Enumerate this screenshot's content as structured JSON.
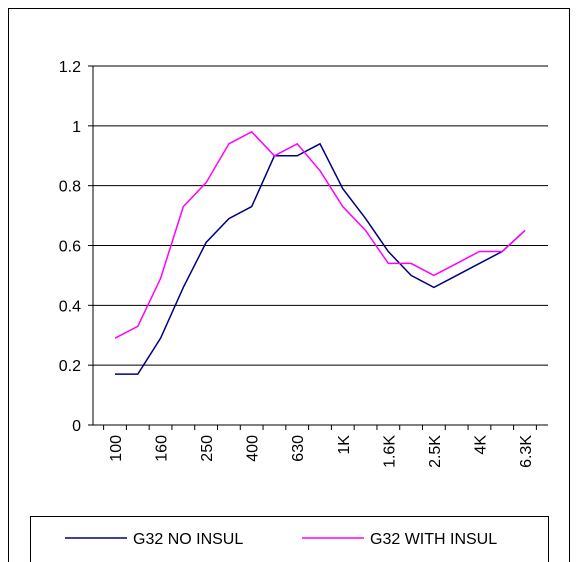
{
  "chart_data": {
    "type": "line",
    "categories": [
      "100",
      null,
      "160",
      null,
      "250",
      null,
      "400",
      null,
      "630",
      null,
      "1K",
      null,
      "1.6K",
      null,
      "2.5K",
      null,
      "4K",
      null,
      "6.3K"
    ],
    "series": [
      {
        "name": "G32 NO INSUL",
        "color": "#000080",
        "values": [
          0.17,
          0.17,
          0.29,
          0.46,
          0.61,
          0.69,
          0.73,
          0.9,
          0.9,
          0.94,
          0.79,
          0.69,
          0.58,
          0.5,
          0.46,
          0.5,
          0.54,
          0.58,
          0.65
        ]
      },
      {
        "name": "G32 WITH INSUL",
        "color": "#ff00ff",
        "values": [
          0.29,
          0.33,
          0.49,
          0.73,
          0.81,
          0.94,
          0.98,
          0.9,
          0.94,
          0.85,
          0.73,
          0.65,
          0.54,
          0.54,
          0.5,
          0.54,
          0.58,
          0.58,
          0.65
        ]
      }
    ],
    "ylim": [
      0,
      1.2
    ],
    "yticks": [
      0,
      0.2,
      0.4,
      0.6,
      0.8,
      1,
      1.2
    ],
    "grid": true,
    "legend": "bottom"
  }
}
